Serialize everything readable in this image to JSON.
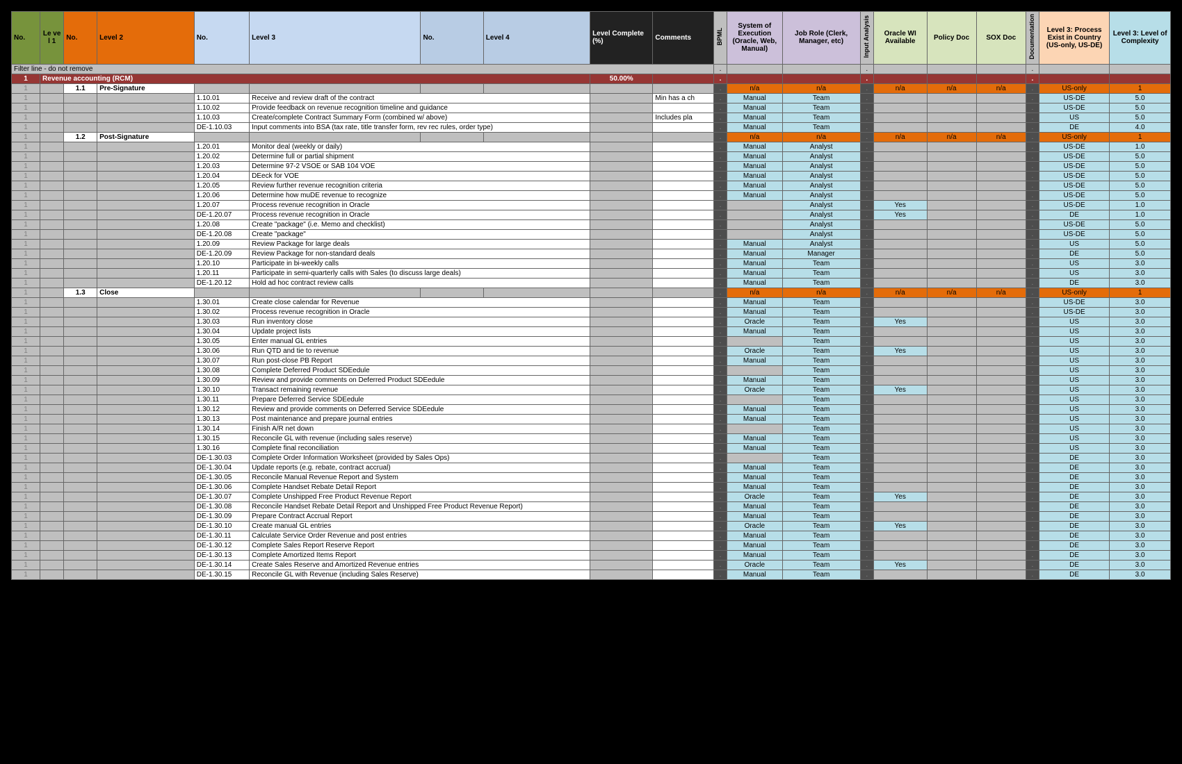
{
  "headers": {
    "no1": "No.",
    "lvl1": "Le ve l 1",
    "no2": "No.",
    "lvl2": "Level 2",
    "no3": "No.",
    "lvl3": "Level 3",
    "no4": "No.",
    "lvl4": "Level 4",
    "pct": "Level Complete (%)",
    "cmt": "Comments",
    "bpml": "BPML",
    "sys": "System of Execution (Oracle, Web, Manual)",
    "role": "Job Role (Clerk, Manager, etc)",
    "ia": "Input Analysis",
    "owi": "Oracle WI Available",
    "pol": "Policy Doc",
    "sox": "SOX Doc",
    "doc": "Documentation",
    "exist": "Level 3: Process Exist in Country (US-only, US-DE)",
    "cmplx": "Level 3: Level of Complexity"
  },
  "filter_label": "Filter line - do not remove",
  "section": {
    "no": "1",
    "name": "Revenue accounting (RCM)",
    "pct": "50.00%"
  },
  "dot": ".",
  "one": "1",
  "colors": {
    "na_bg": "#e46c0a",
    "blue_bg": "#b7dee8",
    "gray_bg": "#bfbfbf",
    "white_bg": "#ffffff",
    "section_bg": "#963634"
  },
  "rows": [
    {
      "type": "l2",
      "no2": "1.1",
      "lvl2": "Pre-Signature",
      "sys": "n/a",
      "role": "n/a",
      "owi": "n/a",
      "pol": "n/a",
      "sox": "n/a",
      "exist": "US-only",
      "cmplx": "1"
    },
    {
      "type": "l3",
      "no3": "1.10.01",
      "lvl3": "Receive and review draft of the contract",
      "cmt": "Min has a ch",
      "sys": "Manual",
      "role": "Team",
      "exist": "US-DE",
      "cmplx": "5.0"
    },
    {
      "type": "l3",
      "no3": "1.10.02",
      "lvl3": "Provide feedback on revenue recognition timeline and guidance",
      "sys": "Manual",
      "role": "Team",
      "exist": "US-DE",
      "cmplx": "5.0"
    },
    {
      "type": "l3",
      "no3": "1.10.03",
      "lvl3": "Create/complete Contract Summary Form (combined w/ above)",
      "cmt": "Includes pla",
      "sys": "Manual",
      "role": "Team",
      "exist": "US",
      "cmplx": "5.0"
    },
    {
      "type": "l3",
      "no3": "DE-1.10.03",
      "lvl3": "Input comments into BSA (tax rate, title transfer form, rev rec rules, order type)",
      "sys": "Manual",
      "role": "Team",
      "exist": "DE",
      "cmplx": "4.0"
    },
    {
      "type": "l2",
      "no2": "1.2",
      "lvl2": "Post-Signature",
      "sys": "n/a",
      "role": "n/a",
      "owi": "n/a",
      "pol": "n/a",
      "sox": "n/a",
      "exist": "US-only",
      "cmplx": "1"
    },
    {
      "type": "l3",
      "no3": "1.20.01",
      "lvl3": "Monitor deal (weekly or daily)",
      "sys": "Manual",
      "role": "Analyst",
      "exist": "US-DE",
      "cmplx": "1.0"
    },
    {
      "type": "l3",
      "no3": "1.20.02",
      "lvl3": "Determine full or partial shipment",
      "sys": "Manual",
      "role": "Analyst",
      "exist": "US-DE",
      "cmplx": "5.0"
    },
    {
      "type": "l3",
      "no3": "1.20.03",
      "lvl3": "Determine 97-2 VSOE or SAB 104 VOE",
      "sys": "Manual",
      "role": "Analyst",
      "exist": "US-DE",
      "cmplx": "5.0"
    },
    {
      "type": "l3",
      "no3": "1.20.04",
      "lvl3": "DEeck for VOE",
      "sys": "Manual",
      "role": "Analyst",
      "exist": "US-DE",
      "cmplx": "5.0"
    },
    {
      "type": "l3",
      "no3": "1.20.05",
      "lvl3": "Review further revenue recognition criteria",
      "sys": "Manual",
      "role": "Analyst",
      "exist": "US-DE",
      "cmplx": "5.0"
    },
    {
      "type": "l3",
      "no3": "1.20.06",
      "lvl3": "Determine how muDE revenue to recognize",
      "sys": "Manual",
      "role": "Analyst",
      "exist": "US-DE",
      "cmplx": "5.0"
    },
    {
      "type": "l3",
      "no3": "1.20.07",
      "lvl3": "Process revenue recognition in Oracle",
      "role": "Analyst",
      "owi": "Yes",
      "exist": "US-DE",
      "cmplx": "1.0"
    },
    {
      "type": "l3",
      "no3": "DE-1.20.07",
      "lvl3": "Process revenue recognition in Oracle",
      "role": "Analyst",
      "owi": "Yes",
      "exist": "DE",
      "cmplx": "1.0"
    },
    {
      "type": "l3",
      "no3": "1.20.08",
      "lvl3": "Create \"package\" (i.e. Memo and checklist)",
      "role": "Analyst",
      "exist": "US-DE",
      "cmplx": "5.0"
    },
    {
      "type": "l3",
      "no3": "DE-1.20.08",
      "lvl3": "Create \"package\"",
      "role": "Analyst",
      "exist": "US-DE",
      "cmplx": "5.0"
    },
    {
      "type": "l3",
      "no3": "1.20.09",
      "lvl3": "Review Package for large deals",
      "sys": "Manual",
      "role": "Analyst",
      "exist": "US",
      "cmplx": "5.0"
    },
    {
      "type": "l3",
      "no3": "DE-1.20.09",
      "lvl3": "Review Package for non-standard deals",
      "sys": "Manual",
      "role": "Manager",
      "exist": "DE",
      "cmplx": "5.0"
    },
    {
      "type": "l3",
      "no3": "1.20.10",
      "lvl3": "Participate in bi-weekly calls",
      "sys": "Manual",
      "role": "Team",
      "exist": "US",
      "cmplx": "3.0"
    },
    {
      "type": "l3",
      "no3": "1.20.11",
      "lvl3": "Participate in semi-quarterly calls with Sales (to discuss large deals)",
      "sys": "Manual",
      "role": "Team",
      "exist": "US",
      "cmplx": "3.0"
    },
    {
      "type": "l3",
      "no3": "DE-1.20.12",
      "lvl3": "Hold ad hoc contract review calls",
      "sys": "Manual",
      "role": "Team",
      "exist": "DE",
      "cmplx": "3.0"
    },
    {
      "type": "l2",
      "no2": "1.3",
      "lvl2": "Close",
      "sys": "n/a",
      "role": "n/a",
      "owi": "n/a",
      "pol": "n/a",
      "sox": "n/a",
      "exist": "US-only",
      "cmplx": "1"
    },
    {
      "type": "l3",
      "no3": "1.30.01",
      "lvl3": "Create close calendar for Revenue",
      "sys": "Manual",
      "role": "Team",
      "exist": "US-DE",
      "cmplx": "3.0"
    },
    {
      "type": "l3",
      "no3": "1.30.02",
      "lvl3": "Process revenue recognition in Oracle",
      "sys": "Manual",
      "role": "Team",
      "exist": "US-DE",
      "cmplx": "3.0"
    },
    {
      "type": "l3",
      "no3": "1.30.03",
      "lvl3": "Run inventory close",
      "sys": "Oracle",
      "role": "Team",
      "owi": "Yes",
      "exist": "US",
      "cmplx": "3.0"
    },
    {
      "type": "l3",
      "no3": "1.30.04",
      "lvl3": "Update project lists",
      "sys": "Manual",
      "role": "Team",
      "exist": "US",
      "cmplx": "3.0"
    },
    {
      "type": "l3",
      "no3": "1.30.05",
      "lvl3": "Enter manual GL entries",
      "role": "Team",
      "exist": "US",
      "cmplx": "3.0"
    },
    {
      "type": "l3",
      "no3": "1.30.06",
      "lvl3": "Run QTD and tie to revenue",
      "sys": "Oracle",
      "role": "Team",
      "owi": "Yes",
      "exist": "US",
      "cmplx": "3.0"
    },
    {
      "type": "l3",
      "no3": "1.30.07",
      "lvl3": "Run post-close PB Report",
      "sys": "Manual",
      "role": "Team",
      "exist": "US",
      "cmplx": "3.0"
    },
    {
      "type": "l3",
      "no3": "1.30.08",
      "lvl3": "Complete Deferred Product SDEedule",
      "role": "Team",
      "exist": "US",
      "cmplx": "3.0"
    },
    {
      "type": "l3",
      "no3": "1.30.09",
      "lvl3": "Review and provide comments on Deferred Product SDEedule",
      "sys": "Manual",
      "role": "Team",
      "exist": "US",
      "cmplx": "3.0"
    },
    {
      "type": "l3",
      "no3": "1.30.10",
      "lvl3": "Transact remaining revenue",
      "sys": "Oracle",
      "role": "Team",
      "owi": "Yes",
      "exist": "US",
      "cmplx": "3.0"
    },
    {
      "type": "l3",
      "no3": "1.30.11",
      "lvl3": "Prepare Deferred Service SDEedule",
      "role": "Team",
      "exist": "US",
      "cmplx": "3.0"
    },
    {
      "type": "l3",
      "no3": "1.30.12",
      "lvl3": "Review and provide comments on Deferred Service SDEedule",
      "sys": "Manual",
      "role": "Team",
      "exist": "US",
      "cmplx": "3.0"
    },
    {
      "type": "l3",
      "no3": "1.30.13",
      "lvl3": "Post maintenance and prepare journal entries",
      "sys": "Manual",
      "role": "Team",
      "exist": "US",
      "cmplx": "3.0"
    },
    {
      "type": "l3",
      "no3": "1.30.14",
      "lvl3": "Finish A/R net down",
      "role": "Team",
      "exist": "US",
      "cmplx": "3.0"
    },
    {
      "type": "l3",
      "no3": "1.30.15",
      "lvl3": "Reconcile GL with revenue (including sales reserve)",
      "sys": "Manual",
      "role": "Team",
      "exist": "US",
      "cmplx": "3.0"
    },
    {
      "type": "l3",
      "no3": "1.30.16",
      "lvl3": "Complete final reconciliation",
      "sys": "Manual",
      "role": "Team",
      "exist": "US",
      "cmplx": "3.0"
    },
    {
      "type": "l3",
      "no3": "DE-1.30.03",
      "lvl3": "Complete Order Information Worksheet (provided by Sales Ops)",
      "role": "Team",
      "exist": "DE",
      "cmplx": "3.0"
    },
    {
      "type": "l3",
      "no3": "DE-1.30.04",
      "lvl3": "Update reports (e.g. rebate, contract accrual)",
      "sys": "Manual",
      "role": "Team",
      "exist": "DE",
      "cmplx": "3.0"
    },
    {
      "type": "l3",
      "no3": "DE-1.30.05",
      "lvl3": "Reconcile Manual Revenue Report and System",
      "sys": "Manual",
      "role": "Team",
      "exist": "DE",
      "cmplx": "3.0"
    },
    {
      "type": "l3",
      "no3": "DE-1.30.06",
      "lvl3": "Complete Handset Rebate Detail Report",
      "sys": "Manual",
      "role": "Team",
      "exist": "DE",
      "cmplx": "3.0"
    },
    {
      "type": "l3",
      "no3": "DE-1.30.07",
      "lvl3": "Complete Unshipped Free Product Revenue Report",
      "sys": "Oracle",
      "role": "Team",
      "owi": "Yes",
      "exist": "DE",
      "cmplx": "3.0"
    },
    {
      "type": "l3",
      "no3": "DE-1.30.08",
      "lvl3": "Reconcile Handset Rebate Detail Report and Unshipped Free Product Revenue Report)",
      "sys": "Manual",
      "role": "Team",
      "exist": "DE",
      "cmplx": "3.0"
    },
    {
      "type": "l3",
      "no3": "DE-1.30.09",
      "lvl3": "Prepare Contract Accrual Report",
      "sys": "Manual",
      "role": "Team",
      "exist": "DE",
      "cmplx": "3.0"
    },
    {
      "type": "l3",
      "no3": "DE-1.30.10",
      "lvl3": "Create manual GL entries",
      "sys": "Oracle",
      "role": "Team",
      "owi": "Yes",
      "exist": "DE",
      "cmplx": "3.0"
    },
    {
      "type": "l3",
      "no3": "DE-1.30.11",
      "lvl3": "Calculate Service Order Revenue and post entries",
      "sys": "Manual",
      "role": "Team",
      "exist": "DE",
      "cmplx": "3.0"
    },
    {
      "type": "l3",
      "no3": "DE-1.30.12",
      "lvl3": "Complete Sales Report Reserve Report",
      "sys": "Manual",
      "role": "Team",
      "exist": "DE",
      "cmplx": "3.0"
    },
    {
      "type": "l3",
      "no3": "DE-1.30.13",
      "lvl3": "Complete Amortized Items Report",
      "sys": "Manual",
      "role": "Team",
      "exist": "DE",
      "cmplx": "3.0"
    },
    {
      "type": "l3",
      "no3": "DE-1.30.14",
      "lvl3": "Create Sales Reserve and Amortized Revenue entries",
      "sys": "Oracle",
      "role": "Team",
      "owi": "Yes",
      "exist": "DE",
      "cmplx": "3.0"
    },
    {
      "type": "l3",
      "no3": "DE-1.30.15",
      "lvl3": "Reconcile GL with Revenue (including Sales Reserve)",
      "sys": "Manual",
      "role": "Team",
      "exist": "DE",
      "cmplx": "3.0"
    }
  ]
}
